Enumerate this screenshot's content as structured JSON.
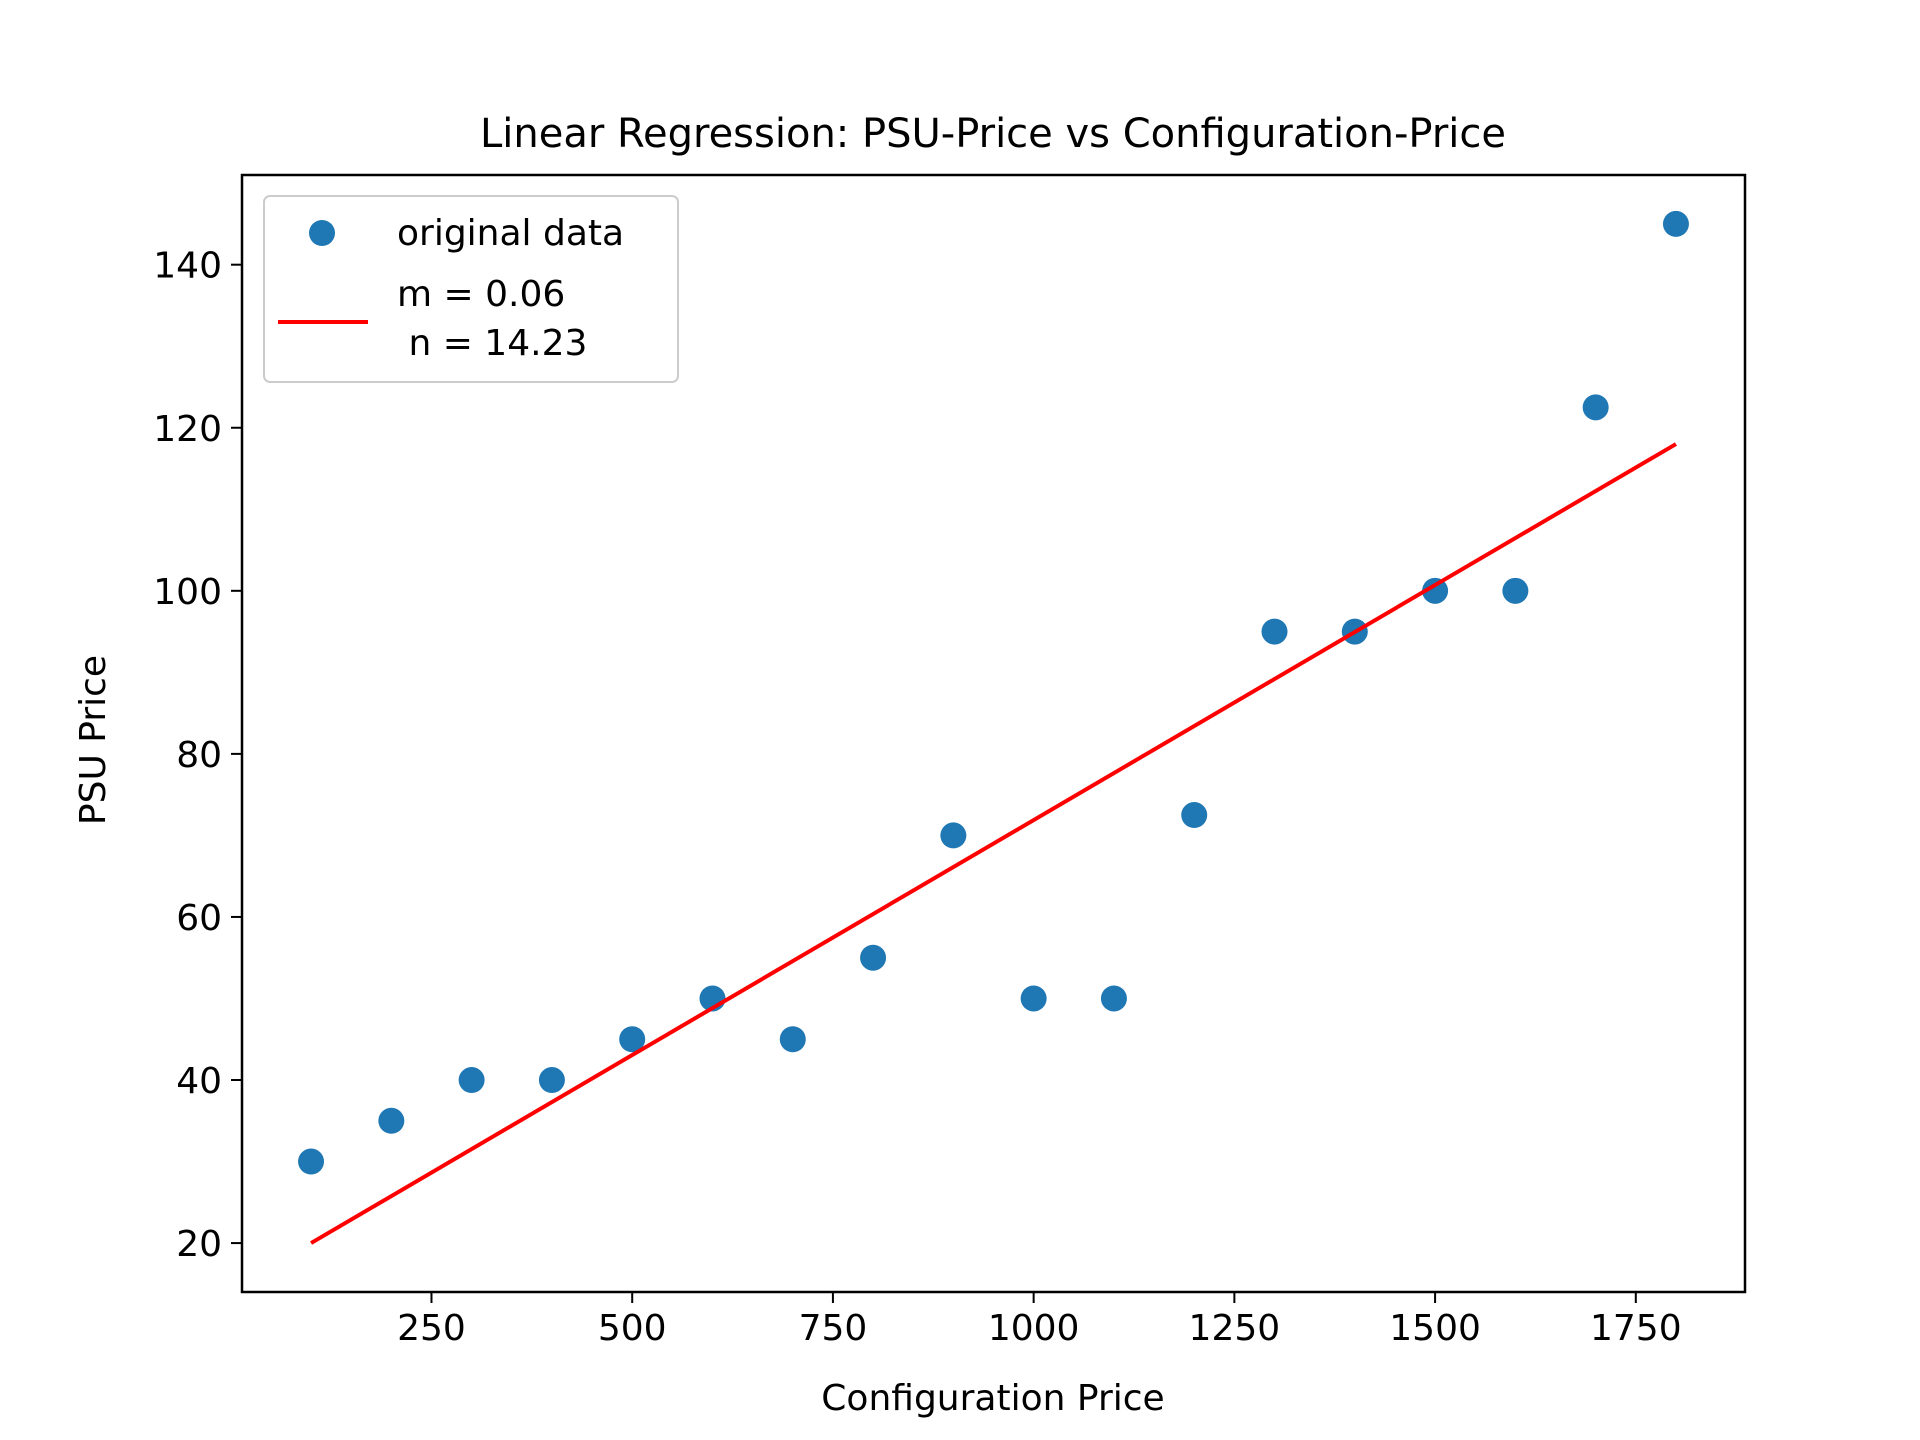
{
  "chart_data": {
    "type": "scatter",
    "title": "Linear Regression: PSU-Price vs Configuration-Price",
    "xlabel": "Configuration Price",
    "ylabel": "PSU Price",
    "xlim": [
      14,
      1886
    ],
    "ylim": [
      14,
      151
    ],
    "x_ticks": [
      250,
      500,
      750,
      1000,
      1250,
      1500,
      1750
    ],
    "y_ticks": [
      20,
      40,
      60,
      80,
      100,
      120,
      140
    ],
    "grid": false,
    "legend_position": "upper-left",
    "series": [
      {
        "name": "original data",
        "kind": "scatter",
        "color": "#1f77b4",
        "x": [
          100,
          200,
          300,
          400,
          500,
          600,
          700,
          800,
          900,
          1000,
          1100,
          1200,
          1300,
          1400,
          1500,
          1600,
          1700,
          1800
        ],
        "y": [
          30,
          35,
          40,
          40,
          45,
          50,
          45,
          55,
          70,
          50,
          50,
          72.5,
          95,
          95,
          100,
          100,
          122.5,
          145
        ]
      },
      {
        "name": "m = 0.06\n n = 14.23",
        "kind": "line",
        "color": "#ff0000",
        "x": [
          100,
          1800
        ],
        "y": [
          20,
          118
        ]
      }
    ]
  }
}
